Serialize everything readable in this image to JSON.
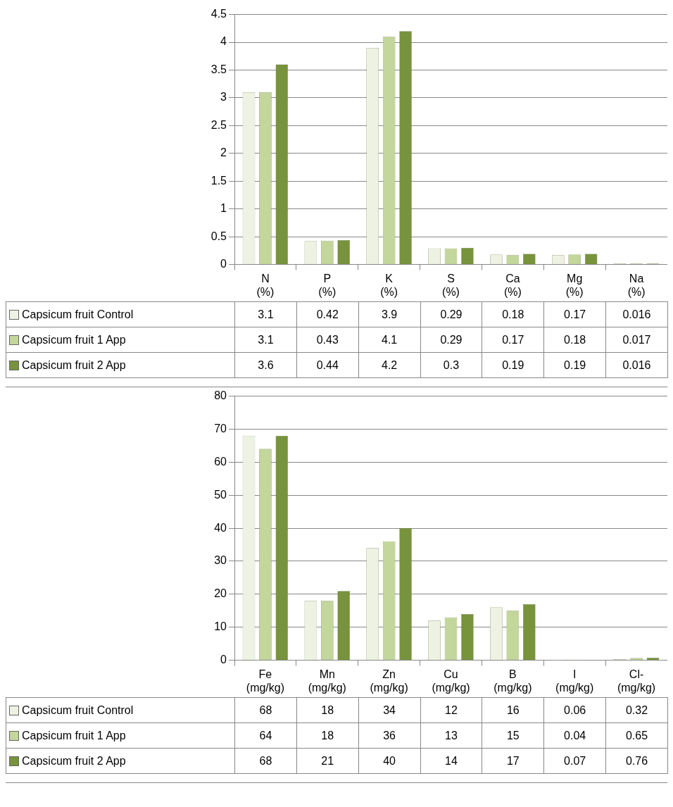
{
  "chart_data": [
    {
      "type": "bar",
      "categories": [
        "N (%)",
        "P (%)",
        "K (%)",
        "S (%)",
        "Ca (%)",
        "Mg (%)",
        "Na (%)"
      ],
      "ylim": [
        0,
        4.5
      ],
      "yticks": [
        0,
        0.5,
        1,
        1.5,
        2,
        2.5,
        3,
        3.5,
        4,
        4.5
      ],
      "grid": "y",
      "legend": "bottom",
      "data_labels": true,
      "series": [
        {
          "name": "Capsicum fruit Control",
          "color": "#eef2e2",
          "values": [
            3.1,
            0.42,
            3.9,
            0.29,
            0.18,
            0.17,
            0.016
          ]
        },
        {
          "name": "Capsicum fruit 1 App",
          "color": "#c3d69b",
          "values": [
            3.1,
            0.43,
            4.1,
            0.29,
            0.17,
            0.18,
            0.017
          ]
        },
        {
          "name": "Capsicum fruit 2 App",
          "color": "#77933c",
          "values": [
            3.6,
            0.44,
            4.2,
            0.3,
            0.19,
            0.19,
            0.016
          ]
        }
      ]
    },
    {
      "type": "bar",
      "categories": [
        "Fe (mg/kg)",
        "Mn (mg/kg)",
        "Zn (mg/kg)",
        "Cu (mg/kg)",
        "B (mg/kg)",
        "I (mg/kg)",
        "Cl- (mg/kg)"
      ],
      "ylim": [
        0,
        80
      ],
      "yticks": [
        0,
        10,
        20,
        30,
        40,
        50,
        60,
        70,
        80
      ],
      "grid": "y",
      "legend": "bottom",
      "data_labels": true,
      "series": [
        {
          "name": "Capsicum fruit Control",
          "color": "#eef2e2",
          "values": [
            68,
            18,
            34,
            12,
            16,
            0.06,
            0.32
          ]
        },
        {
          "name": "Capsicum fruit 1 App",
          "color": "#c3d69b",
          "values": [
            64,
            18,
            36,
            13,
            15,
            0.04,
            0.65
          ]
        },
        {
          "name": "Capsicum fruit 2 App",
          "color": "#77933c",
          "values": [
            68,
            21,
            40,
            14,
            17,
            0.07,
            0.76
          ]
        }
      ]
    }
  ]
}
